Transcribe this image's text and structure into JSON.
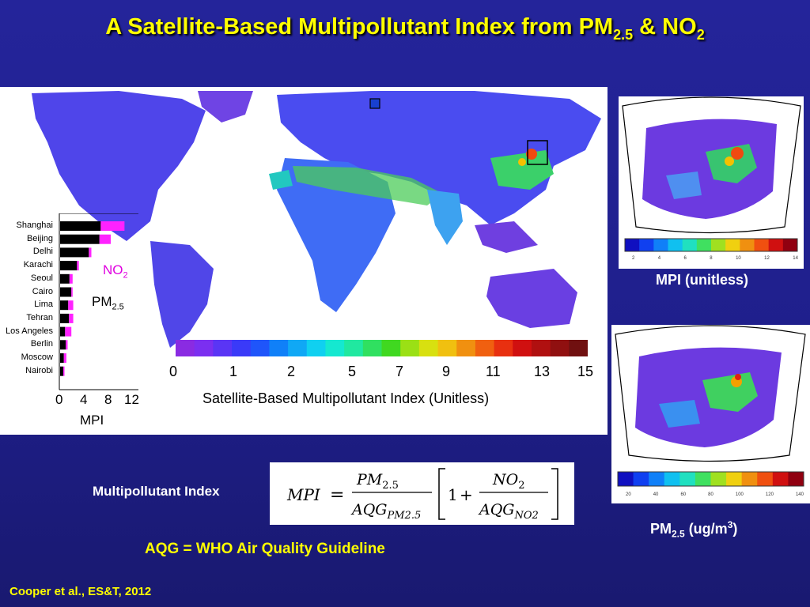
{
  "slide": {
    "title_main": "A Satellite-Based Multipollutant Index from PM",
    "title_sub1": "2.5",
    "title_mid": " & NO",
    "title_sub2": "2"
  },
  "barchart": {
    "cities": [
      "Shanghai",
      "Beijing",
      "Delhi",
      "Karachi",
      "Seoul",
      "Cairo",
      "Lima",
      "Tehran",
      "Los Angeles",
      "Berlin",
      "Moscow",
      "Nairobi"
    ],
    "pm25_mpi": [
      6.5,
      6.3,
      4.6,
      2.7,
      1.5,
      1.8,
      1.3,
      1.4,
      0.8,
      0.9,
      0.6,
      0.5
    ],
    "no2_mpi": [
      3.8,
      1.8,
      0.4,
      0.3,
      0.5,
      0.2,
      0.8,
      0.7,
      1.0,
      0.3,
      0.4,
      0.2
    ],
    "axis_ticks": [
      "0",
      "4",
      "8",
      "12"
    ],
    "xlabel": "MPI",
    "legend_no2": "NO",
    "legend_no2_sub": "2",
    "legend_pm": "PM",
    "legend_pm_sub": "2.5",
    "colors": {
      "pm25": "#000000",
      "no2": "#ff22ff"
    }
  },
  "colorbar": {
    "ticks": [
      "0",
      "1",
      "2",
      "5",
      "7",
      "9",
      "11",
      "13",
      "15"
    ],
    "title": "Satellite-Based Multipollutant Index (Unitless)"
  },
  "inset_mpi": {
    "caption": "MPI (unitless)",
    "ticks": [
      "2",
      "4",
      "6",
      "8",
      "10",
      "12",
      "14"
    ]
  },
  "inset_pm": {
    "caption_main": "PM",
    "caption_sub": "2.5",
    "caption_unit": " (ug/m",
    "caption_sup": "3",
    "caption_close": ")",
    "ticks": [
      "20",
      "40",
      "60",
      "80",
      "100",
      "120",
      "140"
    ]
  },
  "equation": {
    "label": "Multipollutant Index",
    "lhs": "MPI",
    "num1": "PM",
    "num1_sub": "2.5",
    "den1": "AQG",
    "den1_sub": "PM2.5",
    "one": "1",
    "num2": "NO",
    "num2_sub": "2",
    "den2": "AQG",
    "den2_sub": "NO2"
  },
  "footer": {
    "aqg_note": "AQG = WHO Air Quality Guideline",
    "citation": "Cooper et al., ES&T, 2012"
  }
}
